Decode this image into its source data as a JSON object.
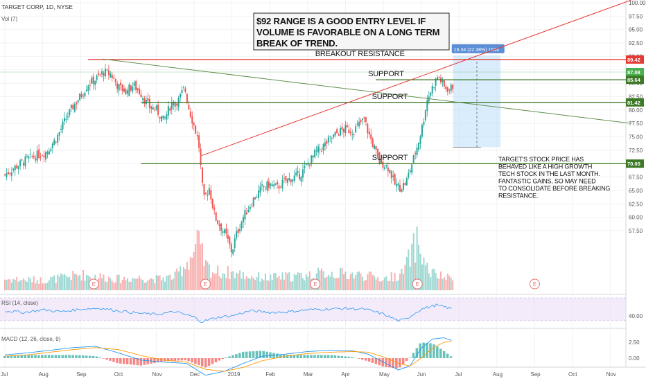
{
  "header": {
    "symbol_line": "TARGET CORP, 1D, NYSE",
    "volume_label": "Vol (7)"
  },
  "annotation_box": {
    "lines": [
      "$92 RANGE IS A GOOD ENTRY LEVEL IF",
      "VOLUME IS FAVORABLE  ON A LONG TERM",
      "BREAK OF TREND."
    ]
  },
  "note": {
    "lines": [
      "TARGET'S STOCK PRICE HAS",
      "BEHAVED LIKE A HIGH GROWTH",
      "TECH STOCK IN THE LAST MONTH.",
      "FANTASTIC GAINS, SO MAY NEED",
      "TO CONSOLIDATE BEFORE BREAKING",
      "RESISTANCE."
    ]
  },
  "measure_label": "16.34 (22.38%) 1634",
  "colors": {
    "up": "#26a69a",
    "down": "#ef5350",
    "resistance": "#e53935",
    "support": "#3d7a27",
    "trend": "#5f8f4e",
    "rsi": "#2196f3",
    "macd": "#2196f3",
    "signal": "#ff9800",
    "measure": "#bbdefb",
    "current": "#4caf50"
  },
  "chart_data": [
    {
      "type": "candlestick",
      "title": "TARGET CORP, 1D, NYSE",
      "ylim": [
        56,
        100
      ],
      "yticks": [
        "100.00",
        "97.50",
        "95.00",
        "92.50",
        "90.00",
        "87.50",
        "85.00",
        "82.50",
        "80.00",
        "77.50",
        "75.00",
        "72.50",
        "70.00",
        "67.50",
        "65.00",
        "62.50",
        "60.00",
        "57.50"
      ],
      "x_labels": [
        "Jul",
        "Aug",
        "Sep",
        "Oct",
        "Nov",
        "Dec",
        "2019",
        "Feb",
        "Mar",
        "Apr",
        "May",
        "Jun",
        "Jul",
        "Aug",
        "Sep",
        "Oct",
        "Nov"
      ],
      "close_series": [
        {
          "m": 0,
          "c": 73.5
        },
        {
          "m": 0.3,
          "c": 74.8
        },
        {
          "m": 0.6,
          "c": 75.9
        },
        {
          "m": 0.9,
          "c": 76.6
        },
        {
          "m": 1.1,
          "c": 77.0
        },
        {
          "m": 1.4,
          "c": 79.5
        },
        {
          "m": 1.6,
          "c": 82.0
        },
        {
          "m": 1.8,
          "c": 84.0
        },
        {
          "m": 2.0,
          "c": 85.6
        },
        {
          "m": 2.2,
          "c": 87.5
        },
        {
          "m": 2.4,
          "c": 88.2
        },
        {
          "m": 2.6,
          "c": 89.3
        },
        {
          "m": 2.8,
          "c": 89.0
        },
        {
          "m": 3.0,
          "c": 87.0
        },
        {
          "m": 3.2,
          "c": 86.4
        },
        {
          "m": 3.4,
          "c": 87.3
        },
        {
          "m": 3.6,
          "c": 86.0
        },
        {
          "m": 3.8,
          "c": 84.0
        },
        {
          "m": 4.0,
          "c": 83.5
        },
        {
          "m": 4.2,
          "c": 81.8
        },
        {
          "m": 4.4,
          "c": 84.5
        },
        {
          "m": 4.6,
          "c": 85.0
        },
        {
          "m": 4.75,
          "c": 87.0
        },
        {
          "m": 4.85,
          "c": 84.0
        },
        {
          "m": 5.0,
          "c": 81.0
        },
        {
          "m": 5.12,
          "c": 78.5
        },
        {
          "m": 5.25,
          "c": 69.5
        },
        {
          "m": 5.4,
          "c": 71.5
        },
        {
          "m": 5.55,
          "c": 67.0
        },
        {
          "m": 5.7,
          "c": 65.5
        },
        {
          "m": 5.85,
          "c": 64.0
        },
        {
          "m": 6.0,
          "c": 61.5
        },
        {
          "m": 6.1,
          "c": 64.0
        },
        {
          "m": 6.3,
          "c": 67.0
        },
        {
          "m": 6.55,
          "c": 69.5
        },
        {
          "m": 6.8,
          "c": 71.5
        },
        {
          "m": 7.0,
          "c": 72.0
        },
        {
          "m": 7.2,
          "c": 71.5
        },
        {
          "m": 7.4,
          "c": 72.5
        },
        {
          "m": 7.6,
          "c": 73.0
        },
        {
          "m": 7.8,
          "c": 73.5
        },
        {
          "m": 8.0,
          "c": 75.0
        },
        {
          "m": 8.2,
          "c": 76.8
        },
        {
          "m": 8.4,
          "c": 77.8
        },
        {
          "m": 8.6,
          "c": 79.0
        },
        {
          "m": 8.8,
          "c": 80.0
        },
        {
          "m": 9.0,
          "c": 80.5
        },
        {
          "m": 9.2,
          "c": 80.2
        },
        {
          "m": 9.4,
          "c": 81.5
        },
        {
          "m": 9.5,
          "c": 82.0
        },
        {
          "m": 9.6,
          "c": 80.0
        },
        {
          "m": 9.7,
          "c": 78.5
        },
        {
          "m": 9.8,
          "c": 77.0
        },
        {
          "m": 9.9,
          "c": 75.5
        },
        {
          "m": 10.0,
          "c": 75.2
        },
        {
          "m": 10.15,
          "c": 74.5
        },
        {
          "m": 10.3,
          "c": 72.0
        },
        {
          "m": 10.45,
          "c": 71.5
        },
        {
          "m": 10.6,
          "c": 72.3
        },
        {
          "m": 10.8,
          "c": 76.0
        },
        {
          "m": 10.95,
          "c": 79.0
        },
        {
          "m": 11.05,
          "c": 81.5
        },
        {
          "m": 11.15,
          "c": 85.0
        },
        {
          "m": 11.3,
          "c": 87.0
        },
        {
          "m": 11.45,
          "c": 88.8
        },
        {
          "m": 11.6,
          "c": 87.0
        },
        {
          "m": 11.75,
          "c": 86.6
        },
        {
          "m": 11.85,
          "c": 87.2
        }
      ]
    },
    {
      "type": "area",
      "title": "Vol (7)",
      "x_months": [
        0,
        0.5,
        1,
        1.5,
        2,
        2.5,
        3,
        3.5,
        4,
        4.5,
        5,
        5.1,
        5.3,
        5.5,
        6,
        6.5,
        7,
        7.5,
        8,
        8.5,
        9,
        9.5,
        10,
        10.5,
        10.9,
        11,
        11.2,
        11.5,
        11.85
      ],
      "values": [
        18,
        17,
        16,
        20,
        25,
        22,
        18,
        20,
        18,
        22,
        60,
        78,
        40,
        30,
        28,
        22,
        20,
        22,
        24,
        28,
        26,
        24,
        18,
        26,
        80,
        58,
        30,
        22,
        18
      ]
    },
    {
      "type": "line",
      "title": "RSI (14, close)",
      "yticks": [
        "40.00"
      ],
      "x_months": [
        0,
        0.5,
        1,
        1.5,
        2,
        2.5,
        3,
        3.5,
        4,
        4.5,
        5,
        5.2,
        5.6,
        6,
        6.5,
        7,
        7.5,
        8,
        8.5,
        9,
        9.5,
        10,
        10.4,
        10.6,
        11,
        11.4,
        11.85
      ],
      "values": [
        55,
        50,
        58,
        52,
        60,
        63,
        55,
        48,
        44,
        52,
        36,
        22,
        35,
        40,
        55,
        50,
        52,
        58,
        60,
        62,
        60,
        45,
        25,
        30,
        60,
        72,
        60
      ]
    },
    {
      "type": "line",
      "title": "MACD (12, 26, close, 9)",
      "yticks": [
        "2.50",
        "0.00"
      ],
      "x_months": [
        0,
        0.6,
        1.2,
        1.8,
        2.4,
        3,
        3.6,
        4.2,
        4.8,
        5.3,
        5.8,
        6.3,
        6.8,
        7.4,
        8,
        8.6,
        9.2,
        9.6,
        10,
        10.4,
        10.7,
        11,
        11.3,
        11.6,
        11.85
      ],
      "macd": [
        0.5,
        0.8,
        1.2,
        1.6,
        1.8,
        0.8,
        -0.3,
        -0.6,
        -0.8,
        -2.6,
        -2.0,
        -0.8,
        0.3,
        0.6,
        1.0,
        1.2,
        1.1,
        0.6,
        -0.6,
        -1.8,
        -1.2,
        1.5,
        2.9,
        3.1,
        2.6
      ],
      "signal": [
        0.3,
        0.5,
        0.9,
        1.3,
        1.6,
        1.3,
        0.4,
        -0.3,
        -0.6,
        -1.7,
        -2.0,
        -1.4,
        -0.4,
        0.3,
        0.7,
        0.9,
        1.0,
        0.9,
        0.2,
        -0.8,
        -1.2,
        0.0,
        1.5,
        2.4,
        2.6
      ]
    }
  ],
  "price_tags": [
    {
      "value": 89.42,
      "label": "89.42",
      "color": "#e53935",
      "text_color": "#ffffff"
    },
    {
      "value": 87.08,
      "label": "87.08",
      "color": "#4caf50",
      "text_color": "#ffffff"
    },
    {
      "value": 85.64,
      "label": "85.64",
      "color": "#3d7a27",
      "text_color": "#ffffff"
    },
    {
      "value": 81.42,
      "label": "81.42",
      "color": "#3d7a27",
      "text_color": "#ffffff"
    },
    {
      "value": 70.0,
      "label": "70.00",
      "color": "#3d7a27",
      "text_color": "#ffffff"
    }
  ],
  "levels": [
    {
      "value": 89.42,
      "label": "BREAKOUT RESISTANCE",
      "color": "#e53935"
    },
    {
      "value": 85.64,
      "label": "SUPPORT",
      "color": "#3d7a27"
    },
    {
      "value": 81.42,
      "label": "SUPPORT",
      "color": "#3d7a27"
    },
    {
      "value": 70.0,
      "label": "SUPPORT",
      "color": "#3d7a27"
    }
  ],
  "trendlines": [
    {
      "name": "rising-channel",
      "color": "#e53935",
      "from": {
        "m": 5.2,
        "v": 71.5
      },
      "to": {
        "m": 16.0,
        "v": 100.5
      }
    },
    {
      "name": "falling-trend",
      "color": "#5f8f4e",
      "from": {
        "m": 2.6,
        "v": 89.5
      },
      "to": {
        "m": 16.0,
        "v": 77.5
      }
    }
  ],
  "earnings_markers": [
    {
      "m": 2.35,
      "label": "E"
    },
    {
      "m": 5.3,
      "label": "E"
    },
    {
      "m": 8.2,
      "label": "E"
    },
    {
      "m": 10.9,
      "label": "E"
    },
    {
      "m": 14.0,
      "label": "E"
    }
  ]
}
